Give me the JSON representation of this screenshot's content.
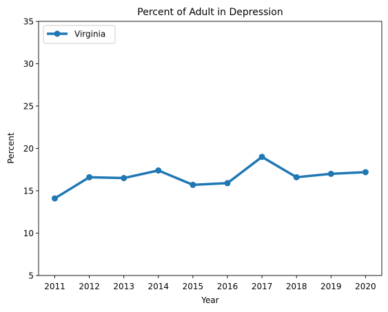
{
  "chart_data": {
    "type": "line",
    "title": "Percent of Adult in Depression",
    "xlabel": "Year",
    "ylabel": "Percent",
    "categories": [
      "2011",
      "2012",
      "2013",
      "2014",
      "2015",
      "2016",
      "2017",
      "2018",
      "2019",
      "2020"
    ],
    "series": [
      {
        "name": "Virginia",
        "color": "#1f77b4",
        "values": [
          14.1,
          16.6,
          16.5,
          17.4,
          15.7,
          15.9,
          19.0,
          16.6,
          17.0,
          17.2
        ]
      }
    ],
    "ylim": [
      5,
      35
    ],
    "yticks": [
      "5",
      "10",
      "15",
      "20",
      "25",
      "30",
      "35"
    ],
    "grid": false,
    "legend_position": "upper-left"
  }
}
